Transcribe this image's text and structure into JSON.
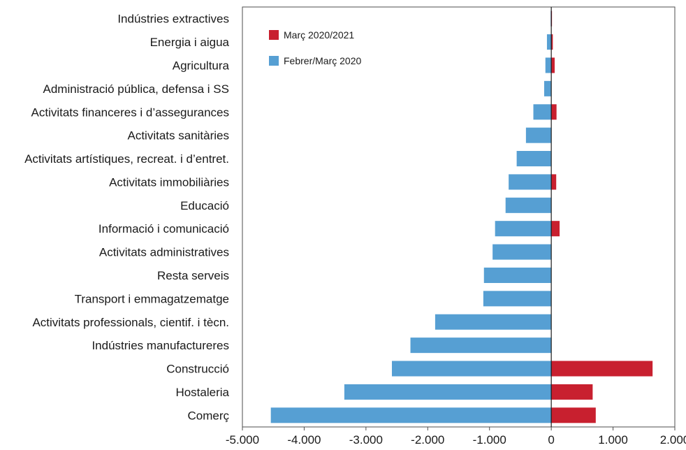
{
  "chart_data": {
    "type": "bar",
    "orientation": "horizontal",
    "categories": [
      "Indústries extractives",
      "Energia i aigua",
      "Agricultura",
      "Administració pública, defensa i SS",
      "Activitats financeres i d’assegurances",
      "Activitats sanitàries",
      "Activitats artístiques, recreat. i d’entret.",
      "Activitats immobiliàries",
      "Educació",
      "Informació i comunicació",
      "Activitats administratives",
      "Resta serveis",
      "Transport i emmagatzematge",
      "Activitats professionals, cientif. i tècn.",
      "Indústries manufactureres",
      "Construcció",
      "Hostaleria",
      "Comerç"
    ],
    "series": [
      {
        "name": "Març 2020/2021",
        "color": "#c8202f",
        "values": [
          10,
          25,
          55,
          0,
          85,
          0,
          0,
          80,
          0,
          135,
          0,
          0,
          0,
          0,
          0,
          1640,
          670,
          720
        ]
      },
      {
        "name": "Febrer/Març 2020",
        "color": "#569fd3",
        "values": [
          -10,
          -70,
          -95,
          -115,
          -290,
          -410,
          -560,
          -690,
          -740,
          -910,
          -950,
          -1090,
          -1100,
          -1880,
          -2280,
          -2580,
          -3350,
          -4540
        ]
      }
    ],
    "xlim": [
      -5000,
      2000
    ],
    "xticks": [
      "-5.000",
      "-4.000",
      "-3.000",
      "-2.000",
      "-1.000",
      "0",
      "1.000",
      "2.000"
    ],
    "xtick_values": [
      -5000,
      -4000,
      -3000,
      -2000,
      -1000,
      0,
      1000,
      2000
    ],
    "legend_position": "top-left",
    "grid": false
  }
}
